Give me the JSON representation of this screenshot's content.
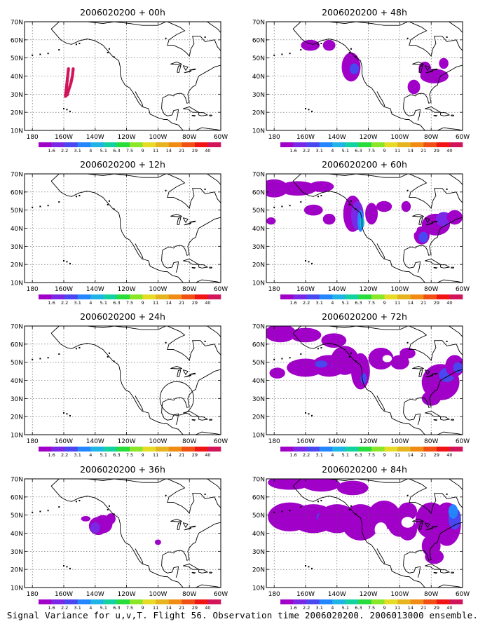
{
  "caption": "Signal Variance for u,v,T. Flight 56. Observation time 2006020200. 2006013000 ensemble.",
  "axes": {
    "lon_labels": [
      "180",
      "160W",
      "140W",
      "120W",
      "100W",
      "80W",
      "60W"
    ],
    "lat_labels": [
      "10N",
      "20N",
      "30N",
      "40N",
      "50N",
      "60N",
      "70N"
    ]
  },
  "colorbar": {
    "labels": [
      "1.6",
      "2.2",
      "3.1",
      "4",
      "5.1",
      "6.3",
      "7.5",
      "9",
      "11",
      "14",
      "21",
      "29",
      "40"
    ],
    "colors": [
      "#a000c8",
      "#7a28e6",
      "#4a46f0",
      "#2386ff",
      "#1eb4e6",
      "#14d2a0",
      "#28dc3c",
      "#8ce628",
      "#e6dc28",
      "#e6b41e",
      "#f08c14",
      "#f05014",
      "#f01414",
      "#d2145a"
    ]
  },
  "panels": [
    {
      "title": "2006020200 + 00h",
      "col": 0,
      "row": 0
    },
    {
      "title": "2006020200 + 48h",
      "col": 1,
      "row": 0
    },
    {
      "title": "2006020200 + 12h",
      "col": 0,
      "row": 1
    },
    {
      "title": "2006020200 + 60h",
      "col": 1,
      "row": 1
    },
    {
      "title": "2006020200 + 24h",
      "col": 0,
      "row": 2
    },
    {
      "title": "2006020200 + 72h",
      "col": 1,
      "row": 2
    },
    {
      "title": "2006020200 + 36h",
      "col": 0,
      "row": 3
    },
    {
      "title": "2006020200 + 84h",
      "col": 1,
      "row": 3
    }
  ]
}
